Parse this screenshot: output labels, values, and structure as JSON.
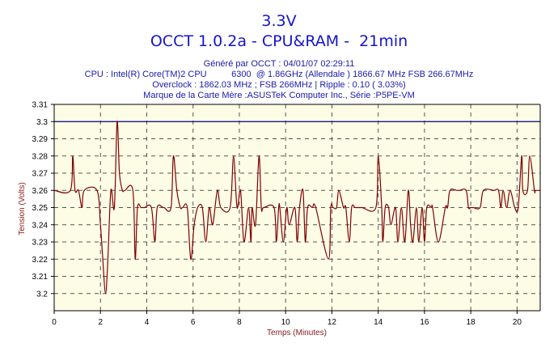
{
  "title": "3.3V",
  "subtitle": "OCCT 1.0.2a - CPU&RAM -  21min",
  "info_lines": [
    "Généré par OCCT : 04/01/07 02:29:11",
    "CPU : Intel(R) Core(TM)2 CPU          6300  @ 1.86GHz (Allendale ) 1866.67 MHz FSB 266.67MHz",
    "Overclock : 1862.03 MHz ; FSB 266MHz | Ripple : 0.10 ( 3.03%)",
    "Marque de la Carte Mère :ASUSTeK Computer Inc., Série :P5PE-VM"
  ],
  "colors": {
    "title": "#1515c8",
    "series": "#800000",
    "reference": "#000080",
    "plot_bg": "#fdfde6",
    "axis_label": "#8b1a1a"
  },
  "chart_data": {
    "type": "line",
    "title": "3.3V",
    "xlabel": "Temps (Minutes)",
    "ylabel": "Tension (Volts)",
    "xlim": [
      0,
      21
    ],
    "ylim": [
      3.19,
      3.31
    ],
    "x_ticks": [
      "0",
      "2",
      "4",
      "6",
      "8",
      "10",
      "12",
      "14",
      "16",
      "18",
      "20"
    ],
    "y_ticks": [
      "3.31",
      "3.3",
      "3.29",
      "3.28",
      "3.27",
      "3.26",
      "3.25",
      "3.24",
      "3.23",
      "3.22",
      "3.21",
      "3.2"
    ],
    "grid": true,
    "reference_line": 3.3,
    "series": [
      {
        "x": [
          0,
          0.7,
          0.8,
          0.9,
          1.05,
          1.2,
          1.3,
          1.85,
          2.0,
          2.1,
          2.22,
          2.32,
          2.45,
          2.6,
          2.72,
          2.82,
          2.95,
          3.05,
          3.4,
          3.5,
          3.6,
          3.75,
          3.9,
          4.2,
          4.35,
          4.45,
          4.7,
          4.75,
          5.05,
          5.15,
          5.3,
          5.45,
          5.55,
          5.75,
          5.9,
          6.05,
          6.2,
          6.4,
          6.55,
          6.7,
          6.85,
          7.05,
          7.2,
          7.6,
          7.75,
          7.9,
          8.05,
          8.2,
          8.4,
          8.5,
          8.55,
          8.7,
          8.85,
          8.95,
          9.05,
          9.5,
          9.6,
          9.7,
          9.75,
          9.9,
          10.05,
          10.15,
          10.4,
          10.5,
          10.6,
          10.75,
          10.85,
          10.95,
          11.15,
          11.3,
          11.85,
          11.95,
          12.05,
          12.2,
          12.3,
          12.5,
          12.6,
          12.75,
          12.85,
          13.0,
          13.1,
          13.3,
          13.9,
          14.0,
          14.15,
          14.2,
          14.3,
          14.45,
          14.55,
          14.75,
          14.85,
          15.0,
          15.15,
          15.3,
          15.4,
          15.5,
          15.65,
          15.75,
          15.9,
          16.0,
          16.1,
          16.3,
          16.35,
          16.6,
          16.9,
          17.0,
          17.1,
          17.4,
          17.5,
          17.8,
          17.9,
          18.0,
          18.1,
          18.4,
          18.55,
          19.0,
          19.2,
          19.3,
          19.4,
          19.55,
          19.7,
          19.9,
          20.05,
          20.2,
          20.25,
          20.45,
          20.55,
          20.75,
          20.8,
          21
        ],
        "y": [
          3.26,
          3.26,
          3.28,
          3.26,
          3.26,
          3.25,
          3.26,
          3.26,
          3.24,
          3.22,
          3.2,
          3.22,
          3.26,
          3.25,
          3.3,
          3.27,
          3.26,
          3.26,
          3.26,
          3.22,
          3.25,
          3.25,
          3.25,
          3.25,
          3.23,
          3.25,
          3.25,
          3.25,
          3.25,
          3.28,
          3.26,
          3.25,
          3.25,
          3.25,
          3.22,
          3.24,
          3.25,
          3.25,
          3.23,
          3.25,
          3.24,
          3.26,
          3.25,
          3.25,
          3.28,
          3.25,
          3.26,
          3.23,
          3.25,
          3.23,
          3.25,
          3.24,
          3.28,
          3.25,
          3.25,
          3.25,
          3.23,
          3.25,
          3.25,
          3.23,
          3.25,
          3.24,
          3.25,
          3.23,
          3.25,
          3.26,
          3.23,
          3.25,
          3.25,
          3.25,
          3.22,
          3.25,
          3.25,
          3.25,
          3.26,
          3.25,
          3.25,
          3.23,
          3.25,
          3.25,
          3.25,
          3.25,
          3.25,
          3.28,
          3.25,
          3.23,
          3.25,
          3.25,
          3.24,
          3.25,
          3.23,
          3.25,
          3.23,
          3.26,
          3.24,
          3.23,
          3.25,
          3.23,
          3.25,
          3.23,
          3.25,
          3.25,
          3.25,
          3.23,
          3.25,
          3.25,
          3.26,
          3.26,
          3.26,
          3.26,
          3.25,
          3.25,
          3.25,
          3.25,
          3.26,
          3.26,
          3.26,
          3.25,
          3.26,
          3.25,
          3.26,
          3.25,
          3.25,
          3.28,
          3.26,
          3.26,
          3.28,
          3.26,
          3.26,
          3.26
        ]
      }
    ]
  }
}
